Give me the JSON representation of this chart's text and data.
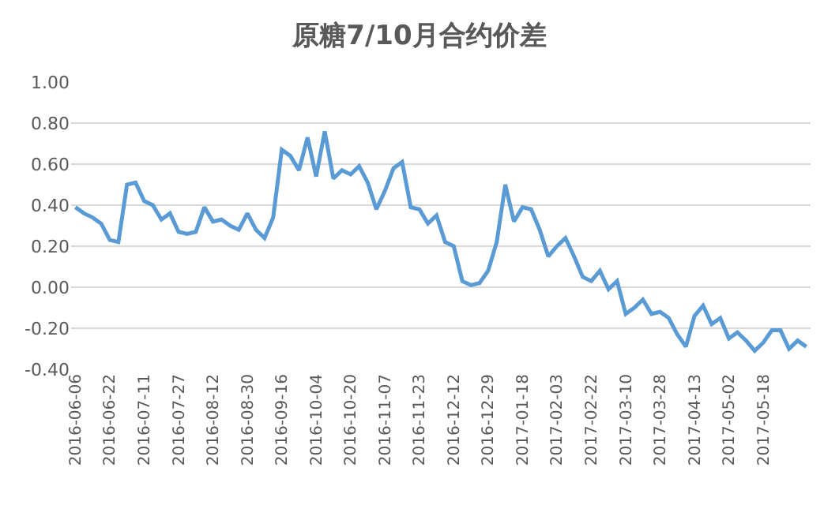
{
  "chart_data": {
    "type": "line",
    "title": "原糖7/10月合约价差",
    "categories": [
      "2016-06-06",
      null,
      null,
      null,
      "2016-06-22",
      null,
      null,
      null,
      "2016-07-11",
      null,
      null,
      null,
      "2016-07-27",
      null,
      null,
      null,
      "2016-08-12",
      null,
      null,
      null,
      "2016-08-30",
      null,
      null,
      null,
      "2016-09-16",
      null,
      null,
      null,
      "2016-10-04",
      null,
      null,
      null,
      "2016-10-20",
      null,
      null,
      null,
      "2016-11-07",
      null,
      null,
      null,
      "2016-11-23",
      null,
      null,
      null,
      "2016-12-12",
      null,
      null,
      null,
      "2016-12-29",
      null,
      null,
      null,
      "2017-01-18",
      null,
      null,
      null,
      "2017-02-03",
      null,
      null,
      null,
      "2017-02-22",
      null,
      null,
      null,
      "2017-03-10",
      null,
      null,
      null,
      "2017-03-28",
      null,
      null,
      null,
      "2017-04-13",
      null,
      null,
      null,
      "2017-05-02",
      null,
      null,
      null,
      "2017-05-18",
      null,
      null,
      null,
      null,
      null
    ],
    "series": [
      {
        "color": "#5b9bd5",
        "values": [
          0.39,
          0.36,
          0.34,
          0.31,
          0.23,
          0.22,
          0.5,
          0.51,
          0.42,
          0.4,
          0.33,
          0.36,
          0.27,
          0.26,
          0.27,
          0.39,
          0.32,
          0.33,
          0.3,
          0.28,
          0.36,
          0.28,
          0.24,
          0.34,
          0.67,
          0.64,
          0.57,
          0.73,
          0.54,
          0.76,
          0.53,
          0.57,
          0.55,
          0.59,
          0.51,
          0.38,
          0.47,
          0.58,
          0.61,
          0.39,
          0.38,
          0.31,
          0.35,
          0.22,
          0.2,
          0.03,
          0.01,
          0.02,
          0.08,
          0.22,
          0.5,
          0.32,
          0.39,
          0.38,
          0.28,
          0.15,
          0.2,
          0.24,
          0.15,
          0.05,
          0.03,
          0.08,
          -0.01,
          0.03,
          -0.13,
          -0.1,
          -0.06,
          -0.13,
          -0.12,
          -0.15,
          -0.23,
          -0.29,
          -0.14,
          -0.09,
          -0.18,
          -0.15,
          -0.25,
          -0.22,
          -0.26,
          -0.31,
          -0.27,
          -0.21,
          -0.21,
          -0.3,
          -0.26,
          -0.29
        ]
      }
    ],
    "ylim": [
      -0.4,
      1.0
    ],
    "yticks": [
      {
        "value": -0.4,
        "label": "-0.40"
      },
      {
        "value": -0.2,
        "label": "-0.20"
      },
      {
        "value": 0,
        "label": "0.00"
      },
      {
        "value": 0.2,
        "label": "0.20"
      },
      {
        "value": 0.4,
        "label": "0.40"
      },
      {
        "value": 0.6,
        "label": "0.60"
      },
      {
        "value": 0.8,
        "label": "0.80"
      },
      {
        "value": 1.0,
        "label": "1.00"
      }
    ],
    "grid": "y",
    "legend": false,
    "marker": "none",
    "line_style": "solid"
  }
}
